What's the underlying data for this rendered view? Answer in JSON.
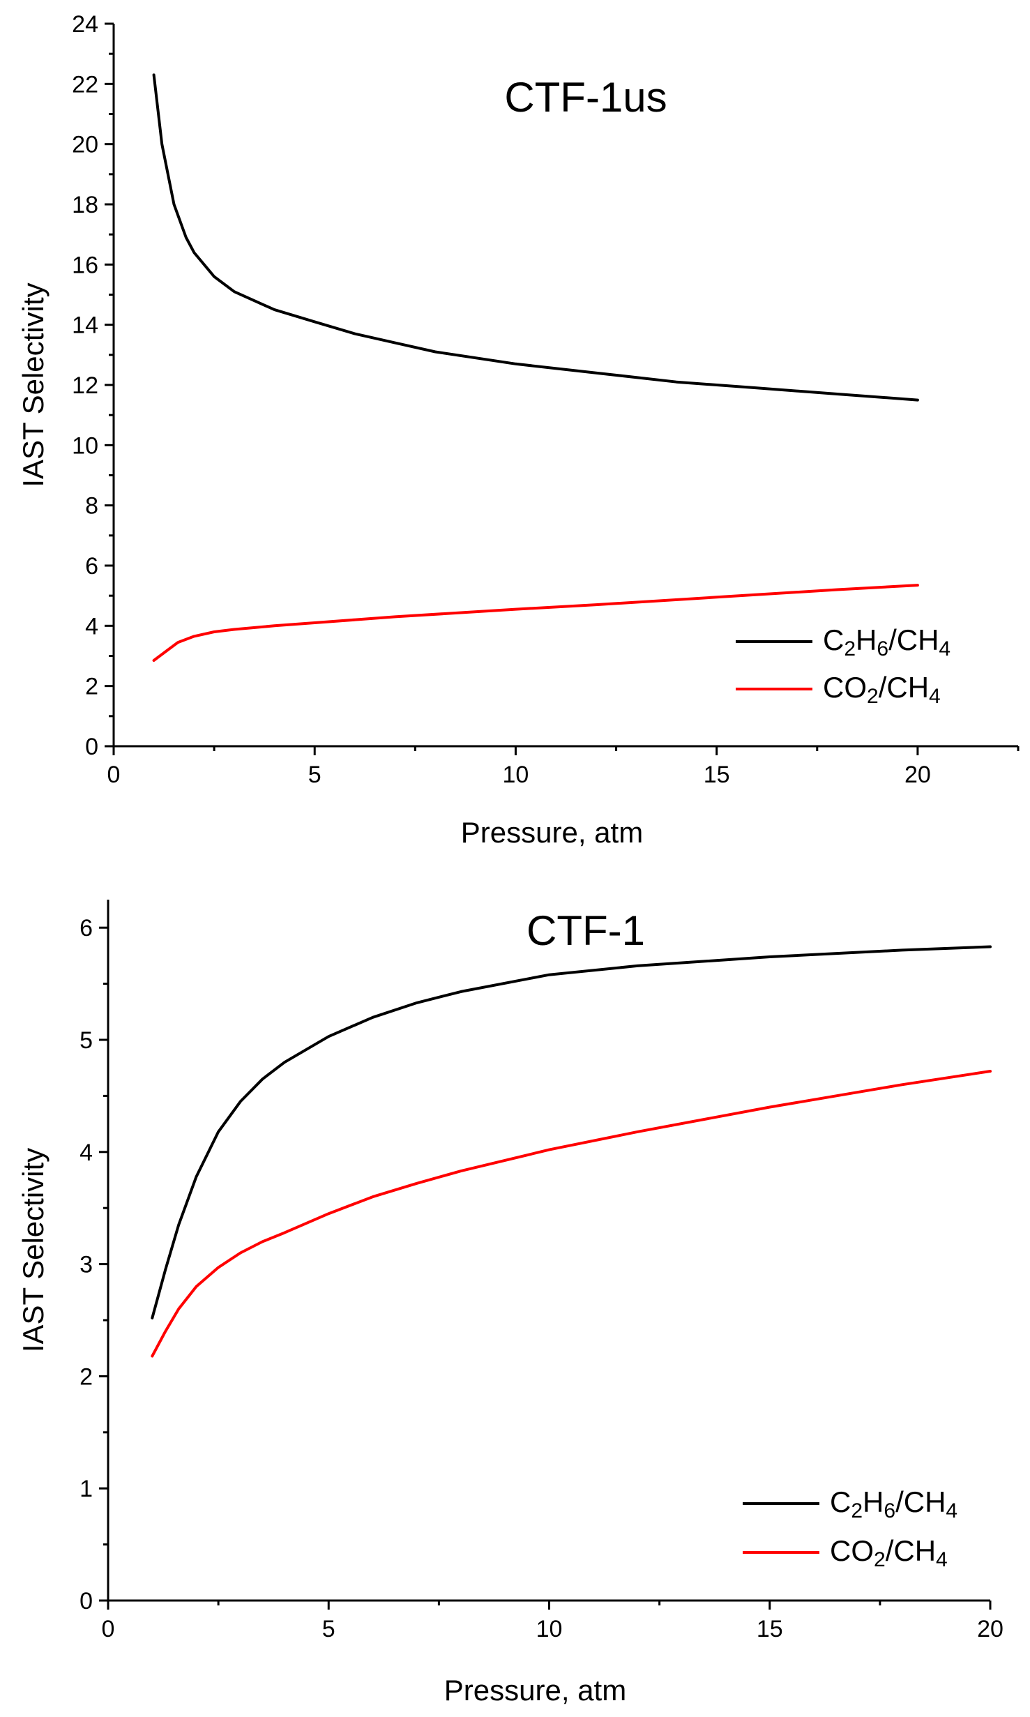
{
  "chart_data": [
    {
      "type": "line",
      "title": "CTF-1us",
      "xlabel": "Pressure, atm",
      "ylabel": "IAST Selectivity",
      "xlim": [
        0,
        22.5
      ],
      "ylim": [
        0,
        24
      ],
      "xticks": [
        0,
        5,
        10,
        15,
        20
      ],
      "yticks": [
        0,
        2,
        4,
        6,
        8,
        10,
        12,
        14,
        16,
        18,
        20,
        22,
        24
      ],
      "legend_position": "bottom-right",
      "series": [
        {
          "name": "C2H6/CH4",
          "label_parts": [
            [
              "C",
              "n"
            ],
            [
              "2",
              "sub"
            ],
            [
              "H",
              "n"
            ],
            [
              "6",
              "sub"
            ],
            [
              "/CH",
              "n"
            ],
            [
              "4",
              "sub"
            ]
          ],
          "color": "#000000",
          "x": [
            1.0,
            1.2,
            1.5,
            1.8,
            2.0,
            2.5,
            3.0,
            4.0,
            5.0,
            6.0,
            7.0,
            8.0,
            10.0,
            12.0,
            14.0,
            16.0,
            18.0,
            20.0
          ],
          "y": [
            22.3,
            20.0,
            18.0,
            16.9,
            16.4,
            15.6,
            15.1,
            14.5,
            14.1,
            13.7,
            13.4,
            13.1,
            12.7,
            12.4,
            12.1,
            11.9,
            11.7,
            11.5
          ]
        },
        {
          "name": "CO2/CH4",
          "label_parts": [
            [
              "CO",
              "n"
            ],
            [
              "2",
              "sub"
            ],
            [
              "/CH",
              "n"
            ],
            [
              "4",
              "sub"
            ]
          ],
          "color": "#ff0000",
          "x": [
            1.0,
            1.3,
            1.6,
            2.0,
            2.5,
            3.0,
            4.0,
            5.0,
            7.0,
            10.0,
            12.0,
            15.0,
            18.0,
            20.0
          ],
          "y": [
            2.85,
            3.15,
            3.45,
            3.65,
            3.8,
            3.88,
            4.0,
            4.1,
            4.3,
            4.55,
            4.7,
            4.95,
            5.2,
            5.35
          ]
        }
      ]
    },
    {
      "type": "line",
      "title": "CTF-1",
      "xlabel": "Pressure, atm",
      "ylabel": "IAST Selectivity",
      "xlim": [
        0,
        20
      ],
      "ylim": [
        0,
        6.25
      ],
      "xticks": [
        0,
        5,
        10,
        15,
        20
      ],
      "yticks": [
        0,
        1,
        2,
        3,
        4,
        5,
        6
      ],
      "legend_position": "bottom-right",
      "series": [
        {
          "name": "C2H6/CH4",
          "label_parts": [
            [
              "C",
              "n"
            ],
            [
              "2",
              "sub"
            ],
            [
              "H",
              "n"
            ],
            [
              "6",
              "sub"
            ],
            [
              "/CH",
              "n"
            ],
            [
              "4",
              "sub"
            ]
          ],
          "color": "#000000",
          "x": [
            1.0,
            1.3,
            1.6,
            2.0,
            2.5,
            3.0,
            3.5,
            4.0,
            5.0,
            6.0,
            7.0,
            8.0,
            10.0,
            12.0,
            15.0,
            18.0,
            20.0
          ],
          "y": [
            2.52,
            2.95,
            3.35,
            3.78,
            4.18,
            4.45,
            4.65,
            4.8,
            5.03,
            5.2,
            5.33,
            5.43,
            5.58,
            5.66,
            5.74,
            5.8,
            5.83
          ]
        },
        {
          "name": "CO2/CH4",
          "label_parts": [
            [
              "CO",
              "n"
            ],
            [
              "2",
              "sub"
            ],
            [
              "/CH",
              "n"
            ],
            [
              "4",
              "sub"
            ]
          ],
          "color": "#ff0000",
          "x": [
            1.0,
            1.3,
            1.6,
            2.0,
            2.5,
            3.0,
            3.5,
            4.0,
            5.0,
            6.0,
            7.0,
            8.0,
            10.0,
            12.0,
            15.0,
            18.0,
            20.0
          ],
          "y": [
            2.18,
            2.4,
            2.6,
            2.8,
            2.97,
            3.1,
            3.2,
            3.28,
            3.45,
            3.6,
            3.72,
            3.83,
            4.02,
            4.18,
            4.4,
            4.6,
            4.72
          ]
        }
      ]
    }
  ]
}
